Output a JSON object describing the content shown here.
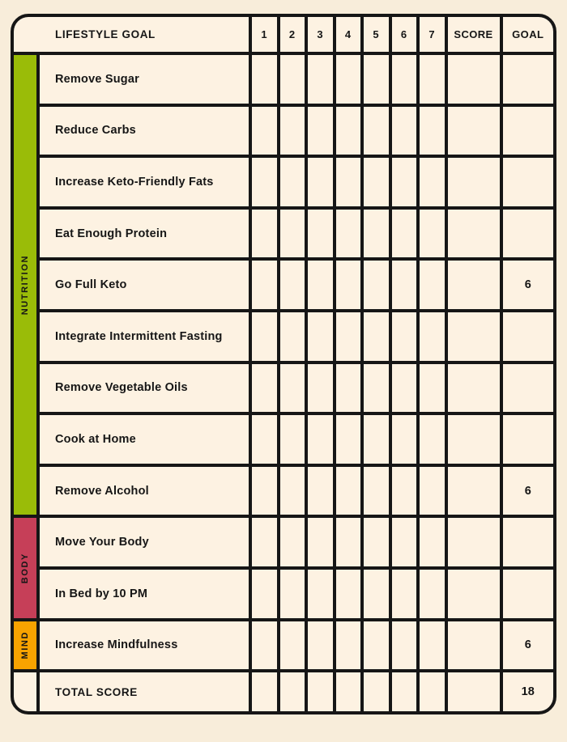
{
  "page": {
    "background_color": "#f8edda",
    "cell_color": "#fdf2e2",
    "line_color": "#161616"
  },
  "header": {
    "goal_column_label": "LIFESTYLE GOAL",
    "day_labels": [
      "1",
      "2",
      "3",
      "4",
      "5",
      "6",
      "7"
    ],
    "score_label": "SCORE",
    "goal_label": "GOAL"
  },
  "categories": [
    {
      "name": "NUTRITION",
      "color": "#9abc08"
    },
    {
      "name": "BODY",
      "color": "#c63f58"
    },
    {
      "name": "MIND",
      "color": "#f8a300"
    }
  ],
  "rows": [
    {
      "label": "Remove Sugar",
      "goal": ""
    },
    {
      "label": "Reduce Carbs",
      "goal": ""
    },
    {
      "label": "Increase Keto-Friendly Fats",
      "goal": ""
    },
    {
      "label": "Eat Enough Protein",
      "goal": ""
    },
    {
      "label": "Go Full Keto",
      "goal": "6"
    },
    {
      "label": "Integrate Intermittent Fasting",
      "goal": ""
    },
    {
      "label": "Remove Vegetable Oils",
      "goal": ""
    },
    {
      "label": "Cook at Home",
      "goal": ""
    },
    {
      "label": "Remove Alcohol",
      "goal": "6"
    },
    {
      "label": "Move Your Body",
      "goal": ""
    },
    {
      "label": "In Bed by 10 PM",
      "goal": ""
    },
    {
      "label": "Increase Mindfulness",
      "goal": "6"
    }
  ],
  "total_row": {
    "label": "TOTAL SCORE",
    "goal": "18"
  }
}
